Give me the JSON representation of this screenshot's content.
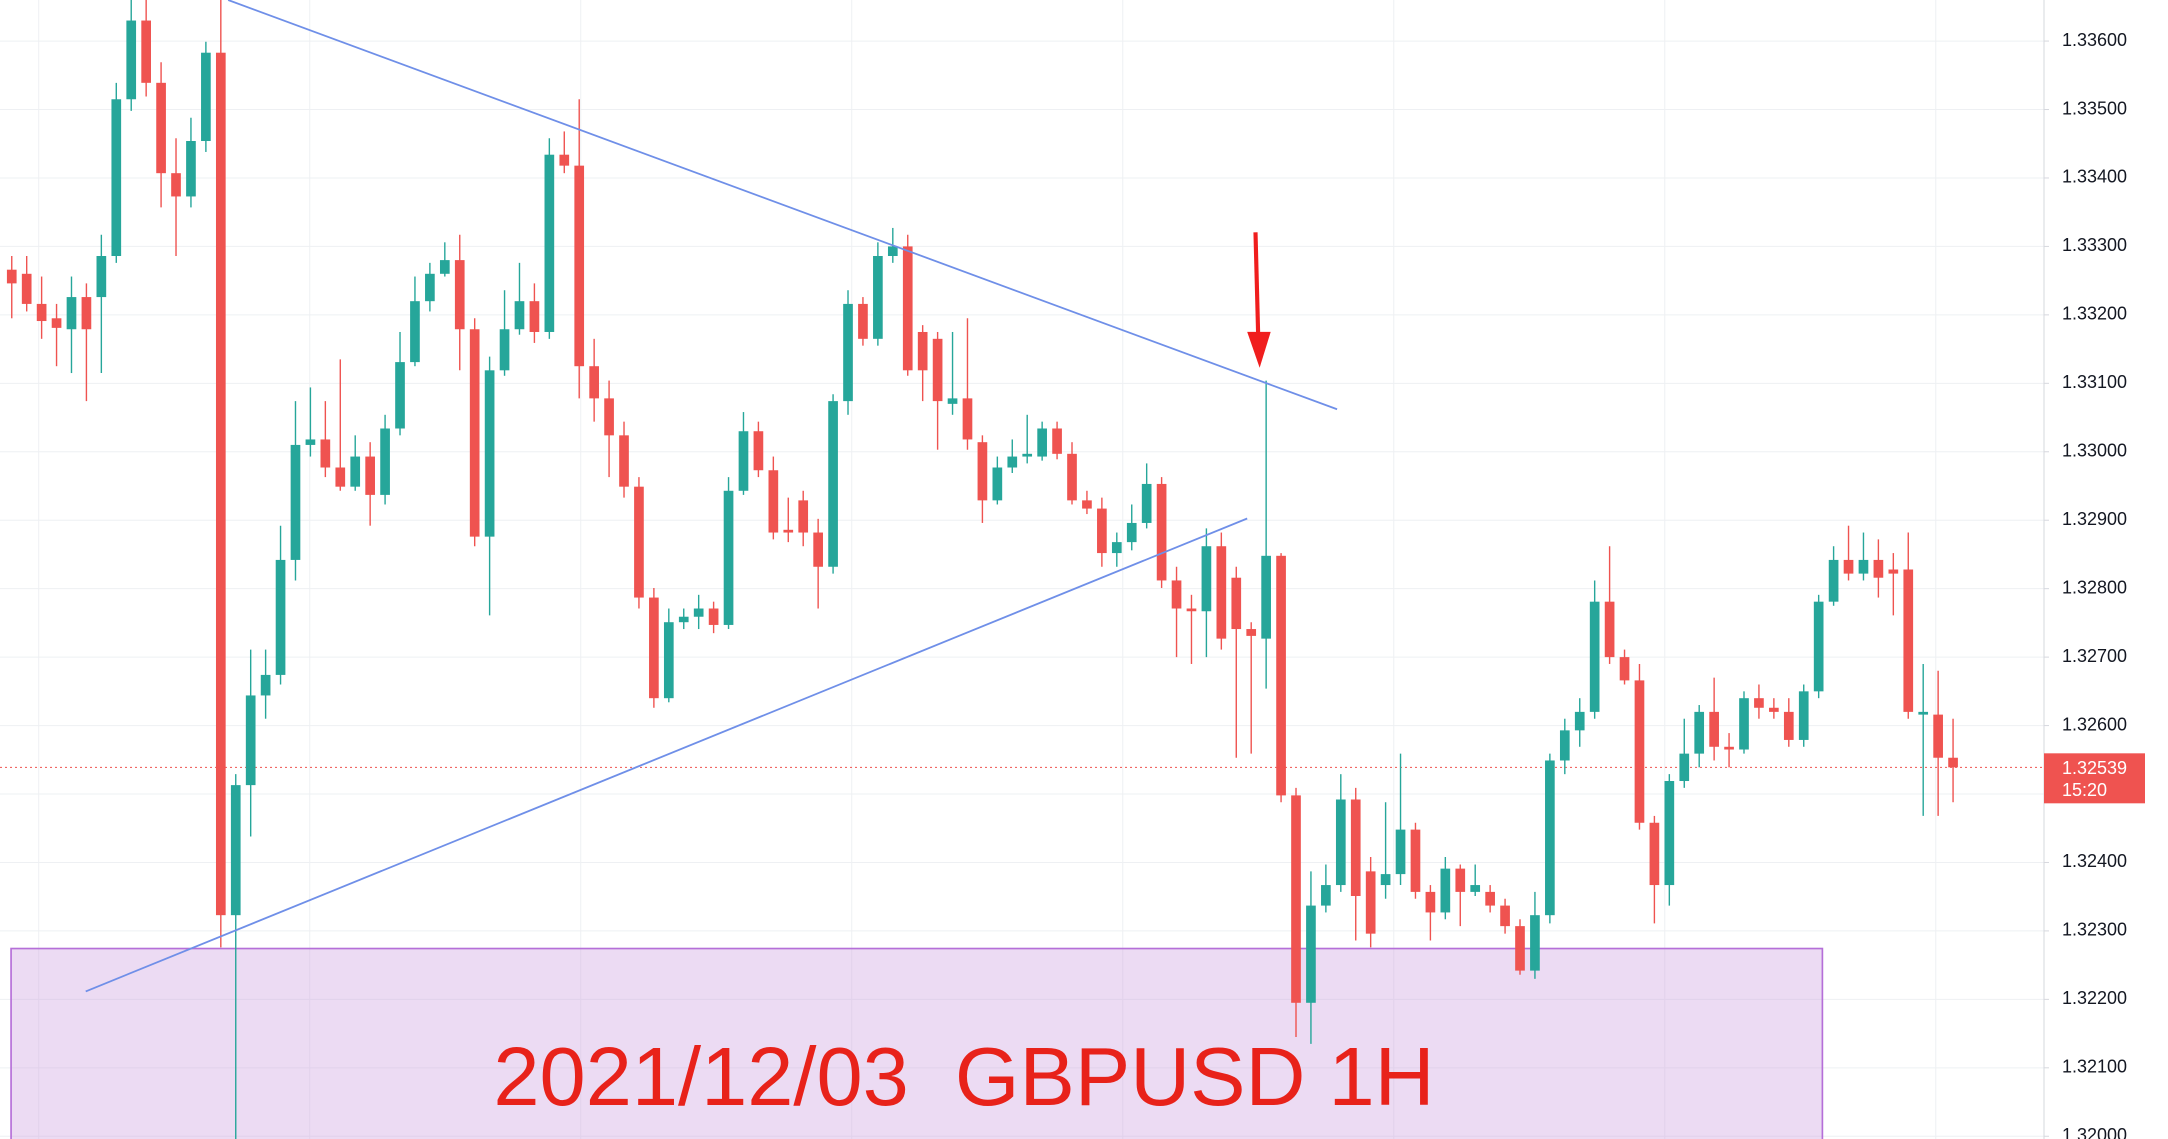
{
  "chart_data": {
    "type": "candlestick",
    "title": "2021/12/03  GBPUSD 1H",
    "ylim": [
      1.31996,
      1.3366
    ],
    "yticks": [
      {
        "value": 1.32,
        "label": "1.32000"
      },
      {
        "value": 1.321,
        "label": "1.32100"
      },
      {
        "value": 1.322,
        "label": "1.32200"
      },
      {
        "value": 1.323,
        "label": "1.32300"
      },
      {
        "value": 1.324,
        "label": "1.32400"
      },
      {
        "value": 1.325,
        "label": "1.32500"
      },
      {
        "value": 1.326,
        "label": "1.32600"
      },
      {
        "value": 1.327,
        "label": "1.32700"
      },
      {
        "value": 1.328,
        "label": "1.32800"
      },
      {
        "value": 1.329,
        "label": "1.32900"
      },
      {
        "value": 1.33,
        "label": "1.33000"
      },
      {
        "value": 1.331,
        "label": "1.33100"
      },
      {
        "value": 1.332,
        "label": "1.33200"
      },
      {
        "value": 1.333,
        "label": "1.33300"
      },
      {
        "value": 1.334,
        "label": "1.33400"
      },
      {
        "value": 1.335,
        "label": "1.33500"
      },
      {
        "value": 1.336,
        "label": "1.33600"
      }
    ],
    "grid": true,
    "up_color": "#26a69a",
    "down_color": "#ef5350",
    "last_price": 1.32539,
    "countdown": "15:20",
    "open": [
      1.33266,
      1.3326,
      1.33216,
      1.33195,
      1.33179,
      1.33226,
      1.33226,
      1.33286,
      1.33515,
      1.3363,
      1.33539,
      1.33407,
      1.33373,
      1.33454,
      1.33583,
      1.32323,
      1.32513,
      1.32644,
      1.32674,
      1.32842,
      1.3301,
      1.33018,
      1.32977,
      1.32949,
      1.32993,
      1.32937,
      1.33034,
      1.33131,
      1.3322,
      1.3326,
      1.3328,
      1.33179,
      1.32876,
      1.33119,
      1.33179,
      1.3322,
      1.33175,
      1.33434,
      1.33418,
      1.33125,
      1.33078,
      1.33024,
      1.32949,
      1.32787,
      1.3264,
      1.32751,
      1.32759,
      1.32771,
      1.32747,
      1.32943,
      1.3303,
      1.32973,
      1.32886,
      1.32929,
      1.32882,
      1.32832,
      1.33074,
      1.33216,
      1.33165,
      1.33286,
      1.333,
      1.33175,
      1.33165,
      1.3307,
      1.33078,
      1.33014,
      1.32929,
      1.32977,
      1.32993,
      1.32993,
      1.33034,
      1.32997,
      1.32929,
      1.32917,
      1.32852,
      1.32868,
      1.32896,
      1.32953,
      1.32812,
      1.32771,
      1.32767,
      1.32862,
      1.32816,
      1.32741,
      1.32727,
      1.32848,
      1.32498,
      1.32195,
      1.32337,
      1.32367,
      1.32492,
      1.32387,
      1.32367,
      1.32383,
      1.32448,
      1.32357,
      1.32327,
      1.32391,
      1.32357,
      1.32357,
      1.32337,
      1.32307,
      1.32242,
      1.32323,
      1.32549,
      1.32593,
      1.3262,
      1.32781,
      1.327,
      1.32666,
      1.32458,
      1.32367,
      1.32519,
      1.32559,
      1.3262,
      1.32569,
      1.32565,
      1.3264,
      1.32626,
      1.3262,
      1.32579,
      1.3265,
      1.32781,
      1.32842,
      1.32822,
      1.32842,
      1.32828,
      1.32828,
      1.32616,
      1.32616,
      1.32553
    ],
    "high": [
      1.33286,
      1.33286,
      1.33256,
      1.33216,
      1.33256,
      1.33246,
      1.33317,
      1.33539,
      1.3366,
      1.3366,
      1.33569,
      1.33458,
      1.33488,
      1.33599,
      1.3366,
      1.32529,
      1.32711,
      1.32711,
      1.32892,
      1.33074,
      1.33094,
      1.33074,
      1.33135,
      1.33024,
      1.33014,
      1.33054,
      1.33175,
      1.33256,
      1.33276,
      1.33306,
      1.33317,
      1.33195,
      1.33139,
      1.33236,
      1.33276,
      1.33246,
      1.33458,
      1.33468,
      1.33515,
      1.33165,
      1.33104,
      1.33044,
      1.32963,
      1.32801,
      1.32771,
      1.32771,
      1.32791,
      1.32781,
      1.32963,
      1.33058,
      1.33044,
      1.32993,
      1.32933,
      1.32943,
      1.32902,
      1.33084,
      1.33236,
      1.33226,
      1.33306,
      1.33327,
      1.33317,
      1.33185,
      1.33175,
      1.33175,
      1.33195,
      1.33024,
      1.32993,
      1.33018,
      1.33054,
      1.33044,
      1.33044,
      1.33014,
      1.32943,
      1.32933,
      1.32882,
      1.32923,
      1.32983,
      1.32963,
      1.32832,
      1.32791,
      1.32888,
      1.32882,
      1.32832,
      1.32751,
      1.33104,
      1.32852,
      1.32509,
      1.32387,
      1.32397,
      1.32529,
      1.32509,
      1.32408,
      1.32488,
      1.32559,
      1.32458,
      1.32367,
      1.32408,
      1.32397,
      1.32397,
      1.32367,
      1.32347,
      1.32317,
      1.32357,
      1.32559,
      1.3261,
      1.3264,
      1.32812,
      1.32862,
      1.32711,
      1.3269,
      1.32468,
      1.32529,
      1.3261,
      1.3263,
      1.3267,
      1.32589,
      1.3265,
      1.3266,
      1.3264,
      1.3264,
      1.3266,
      1.32791,
      1.32862,
      1.32892,
      1.32882,
      1.32872,
      1.32852,
      1.32882,
      1.3269,
      1.3268,
      1.3261
    ],
    "low": [
      1.33195,
      1.33205,
      1.33165,
      1.33125,
      1.33115,
      1.33074,
      1.33115,
      1.33276,
      1.33498,
      1.33519,
      1.33357,
      1.33286,
      1.33357,
      1.33438,
      1.32276,
      1.31996,
      1.32438,
      1.3261,
      1.3266,
      1.32812,
      1.32993,
      1.32963,
      1.32943,
      1.32943,
      1.32892,
      1.32923,
      1.33024,
      1.33125,
      1.33205,
      1.33256,
      1.33119,
      1.32862,
      1.32761,
      1.33111,
      1.33171,
      1.33159,
      1.33165,
      1.33407,
      1.33078,
      1.33044,
      1.32963,
      1.32933,
      1.32771,
      1.32626,
      1.32634,
      1.32741,
      1.32741,
      1.32735,
      1.32741,
      1.32937,
      1.32963,
      1.32872,
      1.32868,
      1.32862,
      1.32771,
      1.32822,
      1.33054,
      1.33155,
      1.33155,
      1.33276,
      1.33111,
      1.33074,
      1.33003,
      1.33054,
      1.33003,
      1.32896,
      1.32923,
      1.32969,
      1.32983,
      1.32987,
      1.32989,
      1.32923,
      1.32909,
      1.32832,
      1.32832,
      1.32856,
      1.32888,
      1.32801,
      1.327,
      1.3269,
      1.327,
      1.32711,
      1.32553,
      1.32559,
      1.32654,
      1.32488,
      1.32145,
      1.32135,
      1.32327,
      1.32357,
      1.32286,
      1.32276,
      1.32347,
      1.32367,
      1.32347,
      1.32286,
      1.32317,
      1.32307,
      1.32351,
      1.32327,
      1.32296,
      1.32236,
      1.3223,
      1.32311,
      1.32529,
      1.32569,
      1.3261,
      1.3269,
      1.3266,
      1.32448,
      1.32311,
      1.32337,
      1.32509,
      1.32539,
      1.32549,
      1.32539,
      1.32559,
      1.3261,
      1.3261,
      1.32569,
      1.32569,
      1.3264,
      1.32775,
      1.32812,
      1.32812,
      1.32787,
      1.32761,
      1.3261,
      1.32468,
      1.32468,
      1.32488
    ],
    "close": [
      1.33246,
      1.33216,
      1.33191,
      1.33181,
      1.33226,
      1.33179,
      1.33286,
      1.33515,
      1.3363,
      1.33539,
      1.33407,
      1.33373,
      1.33454,
      1.33583,
      1.32323,
      1.32513,
      1.32644,
      1.32674,
      1.32842,
      1.3301,
      1.33018,
      1.32977,
      1.32949,
      1.32993,
      1.32937,
      1.33034,
      1.33131,
      1.3322,
      1.3326,
      1.3328,
      1.33179,
      1.32876,
      1.33119,
      1.33179,
      1.3322,
      1.33175,
      1.33434,
      1.33418,
      1.33125,
      1.33078,
      1.33024,
      1.32949,
      1.32787,
      1.3264,
      1.32751,
      1.32759,
      1.32771,
      1.32747,
      1.32943,
      1.3303,
      1.32973,
      1.32882,
      1.32882,
      1.32882,
      1.32832,
      1.33074,
      1.33216,
      1.33165,
      1.33286,
      1.333,
      1.33119,
      1.33119,
      1.33074,
      1.33078,
      1.33018,
      1.32929,
      1.32977,
      1.32993,
      1.32997,
      1.33034,
      1.32997,
      1.32929,
      1.32917,
      1.32852,
      1.32868,
      1.32896,
      1.32953,
      1.32812,
      1.32771,
      1.32767,
      1.32862,
      1.32727,
      1.32741,
      1.32731,
      1.32848,
      1.32498,
      1.32195,
      1.32337,
      1.32367,
      1.32492,
      1.32351,
      1.32296,
      1.32383,
      1.32448,
      1.32357,
      1.32327,
      1.32391,
      1.32357,
      1.32367,
      1.32337,
      1.32307,
      1.32242,
      1.32323,
      1.32549,
      1.32593,
      1.3262,
      1.32781,
      1.327,
      1.32666,
      1.32458,
      1.32367,
      1.32519,
      1.32559,
      1.3262,
      1.32569,
      1.32565,
      1.3264,
      1.32626,
      1.3262,
      1.32579,
      1.3265,
      1.32781,
      1.32842,
      1.32822,
      1.32842,
      1.32816,
      1.32822,
      1.3262,
      1.3262,
      1.32553,
      1.32539
    ]
  }
}
